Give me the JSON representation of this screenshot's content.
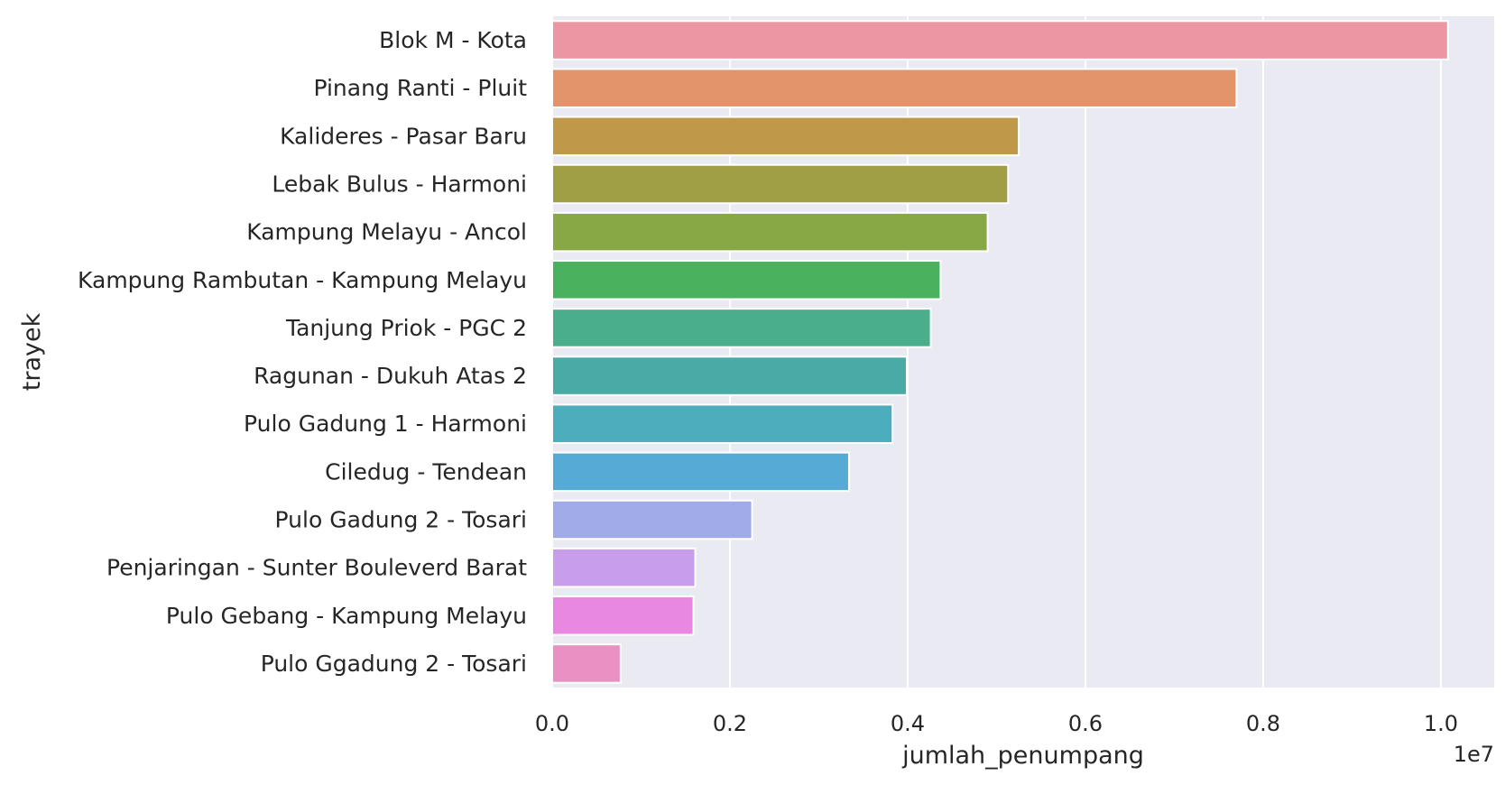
{
  "chart_data": {
    "type": "bar",
    "orientation": "horizontal",
    "categories": [
      "Blok M - Kota",
      "Pinang Ranti - Pluit",
      "Kalideres - Pasar Baru",
      "Lebak Bulus - Harmoni",
      "Kampung Melayu - Ancol",
      "Kampung Rambutan - Kampung Melayu",
      "Tanjung Priok - PGC 2",
      "Ragunan - Dukuh Atas 2",
      "Pulo Gadung 1 - Harmoni",
      "Ciledug - Tendean",
      "Pulo Gadung 2 - Tosari",
      "Penjaringan - Sunter Bouleverd Barat",
      "Pulo Gebang - Kampung Melayu",
      "Pulo Ggadung 2 - Tosari"
    ],
    "values": [
      10080000,
      7700000,
      5250000,
      5130000,
      4900000,
      4370000,
      4260000,
      3990000,
      3830000,
      3340000,
      2250000,
      1610000,
      1590000,
      770000
    ],
    "colors": [
      "#eb96a2",
      "#e3946a",
      "#c0984a",
      "#a09f45",
      "#88a846",
      "#4ab15e",
      "#4aae8c",
      "#4aaaa5",
      "#4cadbc",
      "#55abd6",
      "#a1abe9",
      "#c89de9",
      "#e988e1",
      "#e891c2"
    ],
    "xlabel": "jumlah_penumpang",
    "ylabel": "trayek",
    "x_offset_label": "1e7",
    "x_ticks": [
      0.0,
      0.2,
      0.4,
      0.6,
      0.8,
      1.0
    ],
    "x_tick_labels": [
      "0.0",
      "0.2",
      "0.4",
      "0.6",
      "0.8",
      "1.0"
    ],
    "x_scale": 10000000,
    "xlim": [
      0,
      10600000
    ],
    "grid": true,
    "background": "#eaeaf2"
  }
}
